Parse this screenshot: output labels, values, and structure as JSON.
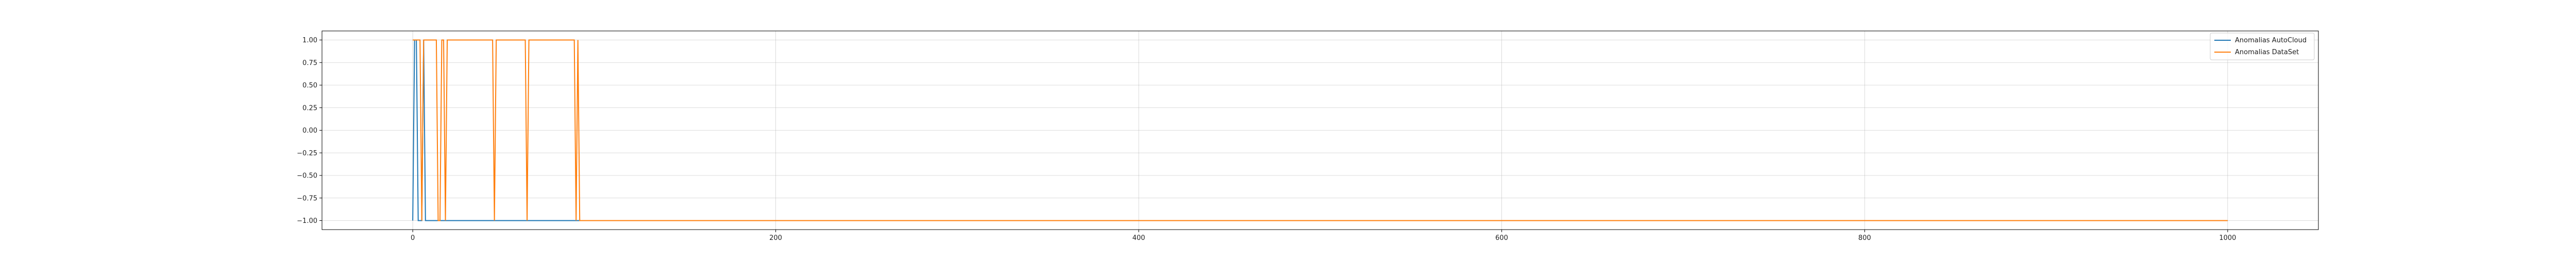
{
  "chart_data": {
    "type": "line",
    "title": "",
    "xlabel": "",
    "ylabel": "",
    "xlim": [
      -50,
      1050
    ],
    "ylim": [
      -1.1,
      1.1
    ],
    "x_ticks": [
      0,
      200,
      400,
      600,
      800,
      1000
    ],
    "y_ticks": [
      1.0,
      0.75,
      0.5,
      0.25,
      0.0,
      -0.25,
      -0.5,
      -0.75,
      -1.0
    ],
    "x_tick_labels": [
      "0",
      "200",
      "400",
      "600",
      "800",
      "1000"
    ],
    "y_tick_labels": [
      "1.00",
      "0.75",
      "0.50",
      "0.25",
      "0.00",
      "−0.25",
      "−0.50",
      "−0.75",
      "−1.00"
    ],
    "grid": true,
    "legend": "top-right",
    "series": [
      {
        "name": "Anomalias AutoCloud",
        "color": "#1f77b4",
        "points": [
          [
            0,
            -1
          ],
          [
            1,
            1
          ],
          [
            2,
            1
          ],
          [
            3,
            -1
          ],
          [
            5,
            -1
          ],
          [
            6,
            1
          ],
          [
            7,
            -1
          ],
          [
            1000,
            -1
          ]
        ]
      },
      {
        "name": "Anomalias DataSet",
        "color": "#ff7f0e",
        "points": [
          [
            0,
            1
          ],
          [
            4,
            1
          ],
          [
            5,
            -1
          ],
          [
            6,
            1
          ],
          [
            13,
            1
          ],
          [
            14,
            -1
          ],
          [
            15,
            -1
          ],
          [
            16,
            1
          ],
          [
            17,
            1
          ],
          [
            18,
            -1
          ],
          [
            19,
            1
          ],
          [
            44,
            1
          ],
          [
            45,
            -1
          ],
          [
            46,
            1
          ],
          [
            62,
            1
          ],
          [
            63,
            -1
          ],
          [
            64,
            1
          ],
          [
            89,
            1
          ],
          [
            90,
            -1
          ],
          [
            91,
            1
          ],
          [
            92,
            -1
          ],
          [
            1000,
            -1
          ]
        ]
      }
    ]
  }
}
